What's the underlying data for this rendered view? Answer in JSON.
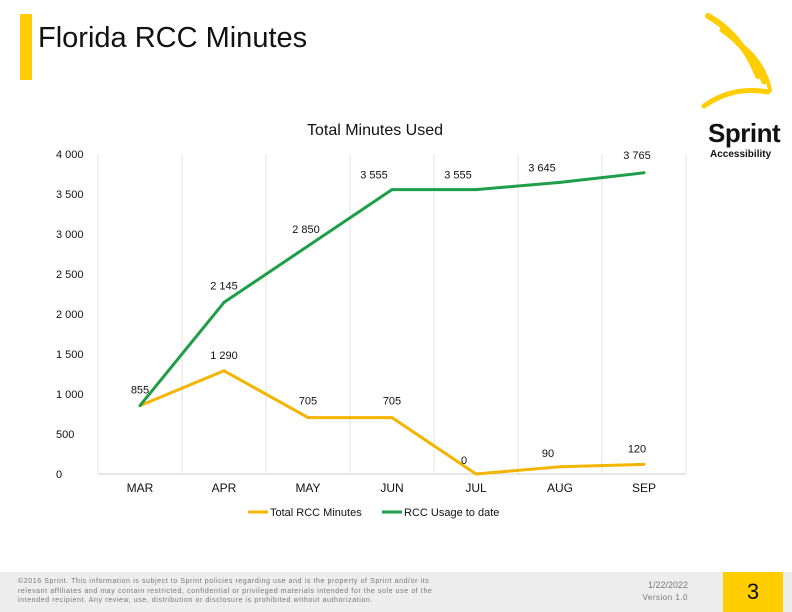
{
  "header": {
    "title": "Florida RCC Minutes"
  },
  "brand": {
    "name": "Sprint",
    "sub": "Accessibility",
    "accent_color": "#FFCD00",
    "logo_icon": "sprint-burst-icon"
  },
  "chart_data": {
    "type": "line",
    "title": "Total Minutes Used",
    "categories": [
      "MAR",
      "APR",
      "MAY",
      "JUN",
      "JUL",
      "AUG",
      "SEP"
    ],
    "y_ticks": [
      "0",
      "500",
      "1 000",
      "1 500",
      "2 000",
      "2 500",
      "3 000",
      "3 500",
      "4 000"
    ],
    "ylim": [
      0,
      4000
    ],
    "grid": "vertical",
    "legend_position": "bottom",
    "series": [
      {
        "name": "Total RCC Minutes",
        "color": "#F4B400",
        "values": [
          855,
          1290,
          705,
          705,
          0,
          90,
          120
        ],
        "labels": [
          "",
          "1 290",
          "705",
          "705",
          "0",
          "90",
          "120"
        ]
      },
      {
        "name": "RCC Usage to date",
        "color": "#1E9E4A",
        "values": [
          855,
          2145,
          2850,
          3555,
          3555,
          3645,
          3765
        ],
        "labels": [
          "855",
          "2 145",
          "2 850",
          "3 555",
          "3 555",
          "3 645",
          "3 765"
        ]
      }
    ]
  },
  "footer": {
    "legal": "©2016 Sprint. This information is subject to Sprint policies regarding use and is the property of Sprint and/or its relevant affiliates and may contain restricted, confidential or privileged materials intended for the sole use of the intended recipient. Any review, use, distribution or disclosure is prohibited without authorization.",
    "date": "1/22/2022",
    "version": "Version 1.0",
    "page_number": "3"
  }
}
